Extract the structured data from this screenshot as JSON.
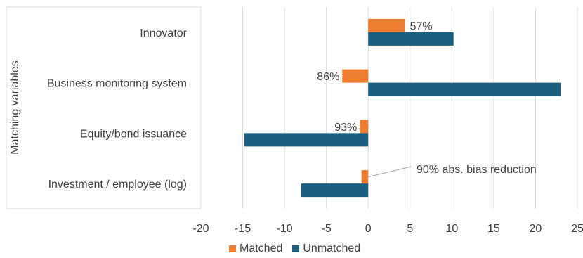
{
  "chart_data": {
    "type": "bar",
    "orientation": "horizontal",
    "ylabel": "Matching variables",
    "xlabel": "",
    "categories": [
      "Innovator",
      "Business monitoring system",
      "Equity/bond issuance",
      "Investment / employee (log)"
    ],
    "series": [
      {
        "name": "Matched",
        "color": "#ED7D31",
        "values": [
          4.4,
          -3.1,
          -1.0,
          -0.8
        ]
      },
      {
        "name": "Unmatched",
        "color": "#1B5E7F",
        "values": [
          10.2,
          23.0,
          -14.8,
          -8.0
        ]
      }
    ],
    "data_labels": [
      "57%",
      "86%",
      "93%"
    ],
    "annotation": "90% abs. bias reduction",
    "xlim": [
      -20,
      25
    ],
    "xticks": [
      "-20",
      "-15",
      "-10",
      "-5",
      "0",
      "5",
      "10",
      "15",
      "20",
      "25"
    ],
    "grid": true,
    "legend_position": "bottom"
  }
}
